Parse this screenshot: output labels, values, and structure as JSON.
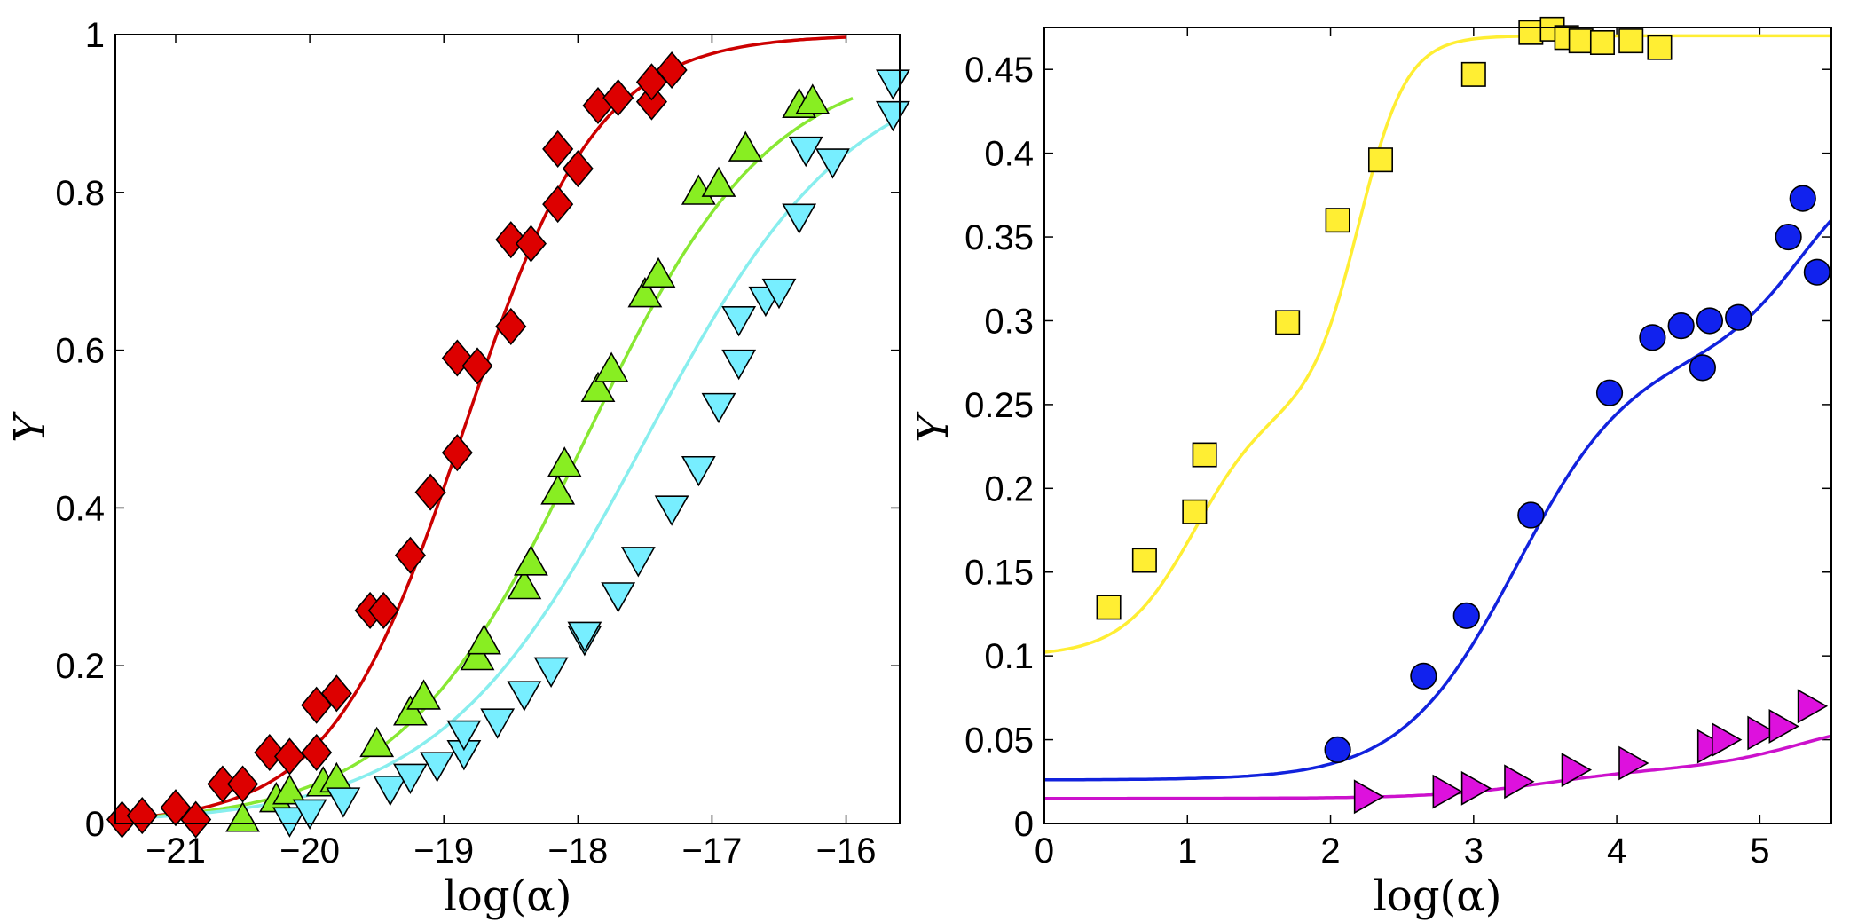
{
  "chart_data": [
    {
      "type": "scatter",
      "panel": "left",
      "xlabel": "log(α)",
      "ylabel": "Y",
      "xlim": [
        -21.45,
        -15.6
      ],
      "ylim": [
        0,
        1
      ],
      "xticks": [
        -21,
        -20,
        -19,
        -18,
        -17,
        -16
      ],
      "xtick_labels": [
        "−21",
        "−20",
        "−19",
        "−18",
        "−17",
        "−16"
      ],
      "yticks": [
        0,
        0.2,
        0.4,
        0.6,
        0.8,
        1
      ],
      "ytick_labels": [
        "0",
        "0.2",
        "0.4",
        "0.6",
        "0.8",
        "1"
      ],
      "series": [
        {
          "name": "red",
          "marker": "diamond",
          "color": "#dd0000",
          "line_color": "#cc0000",
          "fit": {
            "form": "logistic",
            "x0": -18.85,
            "k": 2.0,
            "L": 1.0,
            "b": 0.0,
            "x_range": [
              -21.45,
              -16.0
            ]
          },
          "points": [
            [
              -21.4,
              0.005
            ],
            [
              -21.25,
              0.01
            ],
            [
              -21.0,
              0.02
            ],
            [
              -20.85,
              0.005
            ],
            [
              -20.65,
              0.05
            ],
            [
              -20.5,
              0.05
            ],
            [
              -20.3,
              0.09
            ],
            [
              -20.15,
              0.085
            ],
            [
              -19.95,
              0.09
            ],
            [
              -19.95,
              0.15
            ],
            [
              -19.8,
              0.165
            ],
            [
              -19.55,
              0.27
            ],
            [
              -19.45,
              0.27
            ],
            [
              -19.25,
              0.34
            ],
            [
              -19.1,
              0.42
            ],
            [
              -18.9,
              0.47
            ],
            [
              -18.9,
              0.59
            ],
            [
              -18.75,
              0.58
            ],
            [
              -18.5,
              0.63
            ],
            [
              -18.5,
              0.74
            ],
            [
              -18.35,
              0.735
            ],
            [
              -18.15,
              0.785
            ],
            [
              -18.15,
              0.855
            ],
            [
              -18.0,
              0.83
            ],
            [
              -17.85,
              0.91
            ],
            [
              -17.7,
              0.92
            ],
            [
              -17.45,
              0.915
            ],
            [
              -17.45,
              0.94
            ],
            [
              -17.3,
              0.955
            ]
          ]
        },
        {
          "name": "green",
          "marker": "triangle-up",
          "color": "#88ee22",
          "line_color": "#88e833",
          "fit": {
            "form": "logistic",
            "x0": -17.95,
            "k": 1.45,
            "L": 0.97,
            "b": 0.0,
            "x_range": [
              -21.45,
              -15.95
            ]
          },
          "points": [
            [
              -20.5,
              0.005
            ],
            [
              -20.25,
              0.03
            ],
            [
              -20.15,
              0.04
            ],
            [
              -19.9,
              0.05
            ],
            [
              -19.8,
              0.055
            ],
            [
              -19.5,
              0.1
            ],
            [
              -19.25,
              0.14
            ],
            [
              -19.15,
              0.16
            ],
            [
              -18.75,
              0.21
            ],
            [
              -18.7,
              0.23
            ],
            [
              -18.4,
              0.3
            ],
            [
              -18.35,
              0.33
            ],
            [
              -18.15,
              0.42
            ],
            [
              -18.1,
              0.455
            ],
            [
              -17.85,
              0.55
            ],
            [
              -17.75,
              0.575
            ],
            [
              -17.5,
              0.67
            ],
            [
              -17.4,
              0.695
            ],
            [
              -17.1,
              0.8
            ],
            [
              -16.95,
              0.81
            ],
            [
              -16.75,
              0.855
            ],
            [
              -16.35,
              0.91
            ],
            [
              -16.25,
              0.915
            ]
          ]
        },
        {
          "name": "cyan",
          "marker": "triangle-down",
          "color": "#77eeff",
          "line_color": "#88eeee",
          "fit": {
            "form": "logistic",
            "x0": -17.5,
            "k": 1.3,
            "L": 0.97,
            "b": 0.0,
            "x_range": [
              -21.45,
              -15.6
            ]
          },
          "points": [
            [
              -20.15,
              0.005
            ],
            [
              -20.0,
              0.015
            ],
            [
              -19.75,
              0.03
            ],
            [
              -19.4,
              0.045
            ],
            [
              -19.25,
              0.06
            ],
            [
              -19.05,
              0.075
            ],
            [
              -18.85,
              0.09
            ],
            [
              -18.85,
              0.115
            ],
            [
              -18.6,
              0.13
            ],
            [
              -18.4,
              0.165
            ],
            [
              -18.2,
              0.195
            ],
            [
              -17.95,
              0.235
            ],
            [
              -17.95,
              0.24
            ],
            [
              -17.7,
              0.29
            ],
            [
              -17.55,
              0.335
            ],
            [
              -17.3,
              0.4
            ],
            [
              -17.1,
              0.45
            ],
            [
              -16.95,
              0.53
            ],
            [
              -16.8,
              0.585
            ],
            [
              -16.8,
              0.64
            ],
            [
              -16.6,
              0.665
            ],
            [
              -16.5,
              0.675
            ],
            [
              -16.35,
              0.77
            ],
            [
              -16.3,
              0.855
            ],
            [
              -16.1,
              0.84
            ],
            [
              -15.65,
              0.9
            ],
            [
              -15.65,
              0.94
            ]
          ]
        }
      ]
    },
    {
      "type": "scatter",
      "panel": "right",
      "xlabel": "log(α)",
      "ylabel": "Y",
      "xlim": [
        0,
        5.5
      ],
      "ylim": [
        0,
        0.475
      ],
      "xticks": [
        0,
        1,
        2,
        3,
        4,
        5
      ],
      "xtick_labels": [
        "0",
        "1",
        "2",
        "3",
        "4",
        "5"
      ],
      "yticks": [
        0,
        0.05,
        0.1,
        0.15,
        0.2,
        0.25,
        0.3,
        0.35,
        0.4,
        0.45
      ],
      "ytick_labels": [
        "0",
        "0.05",
        "0.1",
        "0.15",
        "0.2",
        "0.25",
        "0.3",
        "0.35",
        "0.4",
        "0.45"
      ],
      "series": [
        {
          "name": "yellow",
          "marker": "square",
          "color": "#ffee33",
          "line_color": "#ffee33",
          "fit": {
            "form": "double-logistic",
            "b": 0.1,
            "L1": 0.15,
            "x1": 1.05,
            "k1": 4.0,
            "L2": 0.22,
            "x2": 2.2,
            "k2": 6.0,
            "x_range": [
              0,
              5.5
            ]
          },
          "points": [
            [
              0.45,
              0.129
            ],
            [
              0.7,
              0.157
            ],
            [
              1.05,
              0.186
            ],
            [
              1.12,
              0.22
            ],
            [
              1.7,
              0.299
            ],
            [
              2.05,
              0.36
            ],
            [
              2.35,
              0.396
            ],
            [
              3.0,
              0.447
            ],
            [
              3.4,
              0.472
            ],
            [
              3.55,
              0.474
            ],
            [
              3.65,
              0.469
            ],
            [
              3.75,
              0.467
            ],
            [
              3.9,
              0.466
            ],
            [
              4.1,
              0.467
            ],
            [
              4.3,
              0.463
            ]
          ]
        },
        {
          "name": "blue",
          "marker": "circle",
          "color": "#1122ee",
          "line_color": "#1122dd",
          "fit": {
            "form": "double-logistic",
            "b": 0.026,
            "L1": 0.255,
            "x1": 3.3,
            "k1": 2.5,
            "L2": 0.12,
            "x2": 5.3,
            "k2": 3.5,
            "x_range": [
              0,
              5.5
            ]
          },
          "points": [
            [
              2.05,
              0.044
            ],
            [
              2.65,
              0.088
            ],
            [
              2.95,
              0.124
            ],
            [
              3.4,
              0.184
            ],
            [
              3.95,
              0.257
            ],
            [
              4.25,
              0.29
            ],
            [
              4.45,
              0.297
            ],
            [
              4.6,
              0.272
            ],
            [
              4.65,
              0.3
            ],
            [
              4.85,
              0.302
            ],
            [
              5.2,
              0.35
            ],
            [
              5.3,
              0.373
            ],
            [
              5.4,
              0.329
            ]
          ]
        },
        {
          "name": "magenta",
          "marker": "triangle-right",
          "color": "#dd11dd",
          "line_color": "#cc11cc",
          "fit": {
            "form": "double-logistic",
            "b": 0.015,
            "L1": 0.018,
            "x1": 3.5,
            "k1": 2.5,
            "L2": 0.03,
            "x2": 5.3,
            "k2": 3.0,
            "x_range": [
              0,
              5.5
            ]
          },
          "points": [
            [
              2.25,
              0.016
            ],
            [
              2.8,
              0.019
            ],
            [
              3.0,
              0.021
            ],
            [
              3.3,
              0.025
            ],
            [
              3.7,
              0.032
            ],
            [
              4.1,
              0.036
            ],
            [
              4.65,
              0.046
            ],
            [
              4.75,
              0.05
            ],
            [
              5.0,
              0.054
            ],
            [
              5.15,
              0.058
            ],
            [
              5.35,
              0.07
            ]
          ]
        }
      ]
    }
  ]
}
